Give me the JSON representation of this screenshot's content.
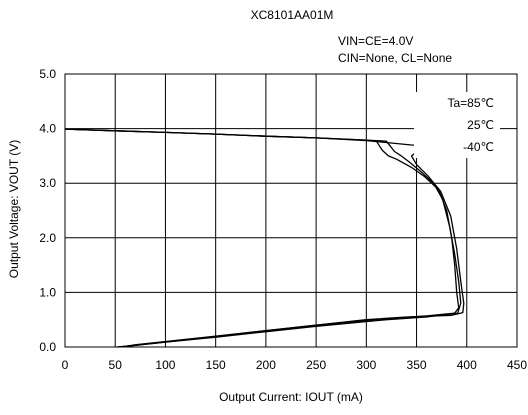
{
  "chart_data": {
    "type": "line",
    "title": "XC8101AA01M",
    "conditions": [
      "VIN=CE=4.0V",
      "CIN=None, CL=None"
    ],
    "xlabel": "Output Current: IOUT (mA)",
    "ylabel": "Output Voltage: VOUT (V)",
    "xlim": [
      0,
      450
    ],
    "ylim": [
      0,
      5
    ],
    "x_ticks": [
      "0",
      "50",
      "100",
      "150",
      "200",
      "250",
      "300",
      "350",
      "400",
      "450"
    ],
    "y_ticks": [
      "0.0",
      "1.0",
      "2.0",
      "3.0",
      "4.0",
      "5.0"
    ],
    "grid": true,
    "legend_position": "top-right",
    "series": [
      {
        "name": "Ta=85℃",
        "color": "#000000",
        "points": [
          [
            0,
            3.99
          ],
          [
            50,
            3.96
          ],
          [
            100,
            3.93
          ],
          [
            150,
            3.9
          ],
          [
            200,
            3.86
          ],
          [
            250,
            3.83
          ],
          [
            300,
            3.79
          ],
          [
            310,
            3.77
          ],
          [
            316,
            3.6
          ],
          [
            322,
            3.5
          ],
          [
            330,
            3.44
          ],
          [
            345,
            3.29
          ],
          [
            358,
            3.12
          ],
          [
            372,
            2.88
          ],
          [
            380,
            2.5
          ],
          [
            385,
            2.0
          ],
          [
            388,
            1.5
          ],
          [
            390,
            1.0
          ],
          [
            392,
            0.72
          ],
          [
            388,
            0.62
          ],
          [
            360,
            0.57
          ],
          [
            320,
            0.52
          ],
          [
            250,
            0.4
          ],
          [
            200,
            0.3
          ],
          [
            150,
            0.19
          ],
          [
            100,
            0.09
          ],
          [
            70,
            0.03
          ],
          [
            52,
            0.0
          ]
        ]
      },
      {
        "name": "25℃",
        "color": "#000000",
        "points": [
          [
            0,
            3.99
          ],
          [
            50,
            3.96
          ],
          [
            100,
            3.93
          ],
          [
            150,
            3.9
          ],
          [
            200,
            3.86
          ],
          [
            250,
            3.83
          ],
          [
            300,
            3.79
          ],
          [
            320,
            3.77
          ],
          [
            328,
            3.58
          ],
          [
            334,
            3.51
          ],
          [
            342,
            3.4
          ],
          [
            355,
            3.2
          ],
          [
            367,
            3.0
          ],
          [
            376,
            2.7
          ],
          [
            383,
            2.2
          ],
          [
            388,
            1.7
          ],
          [
            392,
            1.2
          ],
          [
            394,
            0.8
          ],
          [
            391,
            0.62
          ],
          [
            360,
            0.55
          ],
          [
            320,
            0.5
          ],
          [
            250,
            0.38
          ],
          [
            200,
            0.28
          ],
          [
            150,
            0.18
          ],
          [
            100,
            0.09
          ],
          [
            70,
            0.03
          ],
          [
            52,
            0.0
          ]
        ]
      },
      {
        "name": "-40℃",
        "color": "#000000",
        "points": [
          [
            0,
            3.99
          ],
          [
            50,
            3.96
          ],
          [
            100,
            3.93
          ],
          [
            150,
            3.9
          ],
          [
            200,
            3.86
          ],
          [
            250,
            3.83
          ],
          [
            300,
            3.78
          ],
          [
            345,
            3.7
          ],
          [
            367,
            3.68
          ],
          [
            360,
            3.65
          ],
          [
            352,
            3.6
          ],
          [
            345,
            3.5
          ],
          [
            350,
            3.34
          ],
          [
            362,
            3.12
          ],
          [
            374,
            2.85
          ],
          [
            384,
            2.4
          ],
          [
            390,
            1.8
          ],
          [
            394,
            1.2
          ],
          [
            397,
            0.8
          ],
          [
            396,
            0.63
          ],
          [
            385,
            0.58
          ],
          [
            340,
            0.55
          ],
          [
            300,
            0.5
          ],
          [
            250,
            0.4
          ],
          [
            200,
            0.3
          ],
          [
            150,
            0.2
          ],
          [
            100,
            0.1
          ],
          [
            70,
            0.04
          ],
          [
            55,
            0.0
          ]
        ]
      }
    ]
  }
}
